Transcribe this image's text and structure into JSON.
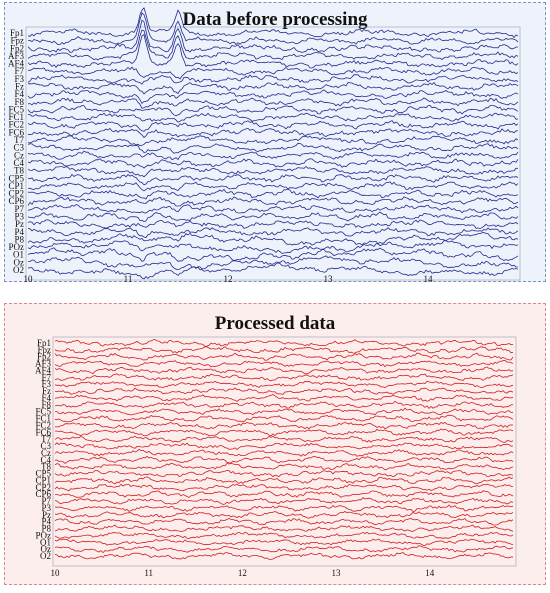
{
  "chart_data": [
    {
      "type": "line",
      "title": "Data before processing",
      "channels": [
        "Fp1",
        "Fpz",
        "Fp2",
        "AF3",
        "AF4",
        "F7",
        "F3",
        "Fz",
        "F4",
        "F8",
        "FC5",
        "FC1",
        "FC2",
        "FC6",
        "T7",
        "C3",
        "Cz",
        "C4",
        "T8",
        "CP5",
        "CP1",
        "CP2",
        "CP6",
        "P7",
        "P3",
        "Pz",
        "P4",
        "P8",
        "POz",
        "O1",
        "Oz",
        "O2"
      ],
      "x_ticks": [
        10,
        11,
        12,
        13,
        14
      ],
      "xlim": [
        10,
        14.9
      ],
      "line_color": "#1f2a8f",
      "events": [
        {
          "x": 11.15,
          "label": ""
        },
        {
          "x": 11.5,
          "label": ""
        }
      ]
    },
    {
      "type": "line",
      "title": "Processed data",
      "channels": [
        "Fp1",
        "Fpz",
        "Fp2",
        "AF3",
        "AF4",
        "F7",
        "F3",
        "Fz",
        "F4",
        "F8",
        "FC5",
        "FC1",
        "FC2",
        "FC6",
        "T7",
        "C3",
        "Cz",
        "C4",
        "T8",
        "CP5",
        "CP1",
        "CP2",
        "CP6",
        "P7",
        "P3",
        "Pz",
        "P4",
        "P8",
        "POz",
        "O1",
        "Oz",
        "O2"
      ],
      "x_ticks": [
        10,
        11,
        12,
        13,
        14
      ],
      "xlim": [
        10,
        14.9
      ],
      "line_color": "#d01c1c",
      "events": []
    }
  ]
}
